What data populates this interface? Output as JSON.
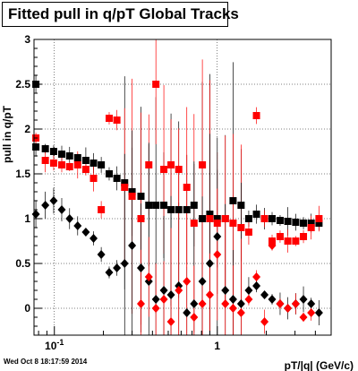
{
  "header": {
    "title": "Fitted pull in q/pT  Global Tracks"
  },
  "footer": {
    "timestamp": "Wed Oct  8 18:17:59 2014"
  },
  "chart_data": {
    "type": "scatter",
    "title": "Fitted pull in q/pT  Global Tracks",
    "xlabel": "pT/|q| (GeV/c)",
    "ylabel": "pull in q/pT",
    "x_scale": "log",
    "xlim": [
      0.075,
      5.0
    ],
    "ylim": [
      -0.3,
      3.0
    ],
    "x_ticks": [
      {
        "value": 0.1,
        "label": "10^-1"
      },
      {
        "value": 1,
        "label": "1"
      }
    ],
    "y_ticks": [
      0,
      0.5,
      1,
      1.5,
      2,
      2.5,
      3
    ],
    "grid": true,
    "series": [
      {
        "color": "#000000",
        "marker": "square",
        "points": [
          [
            0.077,
            2.5
          ],
          [
            0.077,
            1.8
          ],
          [
            0.088,
            1.78
          ],
          [
            0.099,
            1.75
          ],
          [
            0.111,
            1.72
          ],
          [
            0.124,
            1.7
          ],
          [
            0.139,
            1.68
          ],
          [
            0.156,
            1.65
          ],
          [
            0.174,
            1.62
          ],
          [
            0.194,
            1.6
          ],
          [
            0.217,
            1.5
          ],
          [
            0.242,
            1.45
          ],
          [
            0.27,
            1.4
          ],
          [
            0.3,
            1.3
          ],
          [
            0.34,
            1.25
          ],
          [
            0.38,
            1.15
          ],
          [
            0.42,
            1.15
          ],
          [
            0.47,
            1.15
          ],
          [
            0.52,
            1.1
          ],
          [
            0.58,
            1.1
          ],
          [
            0.65,
            1.1
          ],
          [
            0.72,
            1.15
          ],
          [
            0.81,
            1.0
          ],
          [
            0.9,
            1.05
          ],
          [
            1.0,
            1.0
          ],
          [
            1.12,
            1.0
          ],
          [
            1.25,
            1.2
          ],
          [
            1.4,
            1.15
          ],
          [
            1.56,
            1.0
          ],
          [
            1.74,
            1.05
          ],
          [
            1.95,
            1.0
          ],
          [
            2.17,
            1.0
          ],
          [
            2.43,
            0.98
          ],
          [
            2.71,
            0.97
          ],
          [
            3.03,
            0.96
          ],
          [
            3.38,
            0.95
          ],
          [
            3.77,
            0.95
          ],
          [
            4.21,
            0.95
          ]
        ]
      },
      {
        "color": "#ff0000",
        "marker": "square",
        "points": [
          [
            0.077,
            1.9
          ],
          [
            0.088,
            1.65
          ],
          [
            0.099,
            1.62
          ],
          [
            0.111,
            1.6
          ],
          [
            0.124,
            1.58
          ],
          [
            0.139,
            1.6
          ],
          [
            0.156,
            1.55
          ],
          [
            0.174,
            1.45
          ],
          [
            0.194,
            1.1
          ],
          [
            0.217,
            2.12
          ],
          [
            0.242,
            2.1
          ],
          [
            0.27,
            1.35
          ],
          [
            0.3,
            1.25
          ],
          [
            0.34,
            1.0
          ],
          [
            0.38,
            1.6
          ],
          [
            0.42,
            2.5
          ],
          [
            0.47,
            1.55
          ],
          [
            0.52,
            1.6
          ],
          [
            0.58,
            1.55
          ],
          [
            0.65,
            1.35
          ],
          [
            0.72,
            0.95
          ],
          [
            0.81,
            1.6
          ],
          [
            0.9,
            1.0
          ],
          [
            1.0,
            0.95
          ],
          [
            1.12,
            1.0
          ],
          [
            1.25,
            0.95
          ],
          [
            1.4,
            0.9
          ],
          [
            1.56,
            0.85
          ],
          [
            1.74,
            2.15
          ],
          [
            1.95,
            1.0
          ],
          [
            2.17,
            0.75
          ],
          [
            2.43,
            0.8
          ],
          [
            2.71,
            0.75
          ],
          [
            3.03,
            0.75
          ],
          [
            3.38,
            0.8
          ],
          [
            3.77,
            0.9
          ],
          [
            4.21,
            1.0
          ]
        ]
      },
      {
        "color": "#000000",
        "marker": "diamond",
        "points": [
          [
            0.077,
            1.05
          ],
          [
            0.088,
            1.15
          ],
          [
            0.099,
            1.2
          ],
          [
            0.111,
            1.1
          ],
          [
            0.124,
            1.0
          ],
          [
            0.139,
            0.92
          ],
          [
            0.156,
            0.85
          ],
          [
            0.174,
            0.78
          ],
          [
            0.194,
            0.6
          ],
          [
            0.217,
            0.4
          ],
          [
            0.242,
            0.45
          ],
          [
            0.27,
            0.5
          ],
          [
            0.3,
            0.7
          ],
          [
            0.34,
            0.45
          ],
          [
            0.38,
            0.3
          ],
          [
            0.42,
            0.1
          ],
          [
            0.47,
            0.2
          ],
          [
            0.52,
            0.15
          ],
          [
            0.58,
            0.25
          ],
          [
            0.65,
            -0.05
          ],
          [
            0.72,
            0.05
          ],
          [
            0.81,
            0.3
          ],
          [
            0.9,
            0.5
          ],
          [
            1.0,
            0.8
          ],
          [
            1.12,
            0.2
          ],
          [
            1.25,
            0.1
          ],
          [
            1.4,
            0.05
          ],
          [
            1.56,
            0.2
          ],
          [
            1.74,
            0.25
          ],
          [
            1.95,
            0.15
          ],
          [
            2.17,
            0.1
          ],
          [
            2.43,
            0.05
          ],
          [
            2.71,
            0.0
          ],
          [
            3.03,
            0.05
          ],
          [
            3.38,
            0.1
          ],
          [
            3.77,
            0.05
          ],
          [
            4.21,
            -0.05
          ]
        ]
      },
      {
        "color": "#ff0000",
        "marker": "diamond",
        "points": [
          [
            0.34,
            0.05
          ],
          [
            0.38,
            0.35
          ],
          [
            0.42,
            0.0
          ],
          [
            0.47,
            0.1
          ],
          [
            0.52,
            -0.15
          ],
          [
            0.58,
            0.2
          ],
          [
            0.65,
            0.3
          ],
          [
            0.72,
            -0.1
          ],
          [
            0.81,
            0.05
          ],
          [
            0.9,
            0.15
          ],
          [
            1.0,
            0.6
          ],
          [
            1.12,
            0.05
          ],
          [
            1.25,
            0.0
          ],
          [
            1.4,
            -0.05
          ],
          [
            1.56,
            0.1
          ],
          [
            1.74,
            0.35
          ],
          [
            1.95,
            -0.15
          ],
          [
            2.17,
            0.7
          ],
          [
            2.43,
            0.05
          ],
          [
            2.71,
            0.0
          ],
          [
            3.03,
            0.05
          ],
          [
            3.38,
            -0.1
          ],
          [
            3.77,
            -0.05
          ]
        ]
      }
    ]
  }
}
